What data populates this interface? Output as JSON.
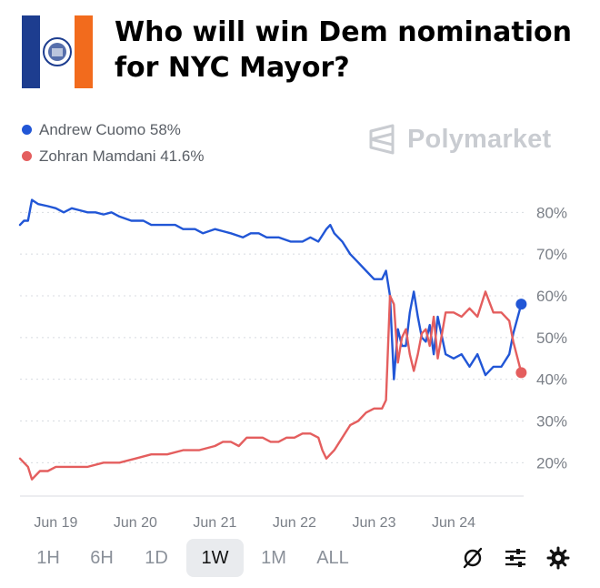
{
  "header": {
    "title": "Who will win Dem nomination for NYC Mayor?",
    "flag_colors": [
      "#1d3d8f",
      "#ffffff",
      "#f26b1d"
    ]
  },
  "brand": {
    "name": "Polymarket"
  },
  "legend": [
    {
      "label": "Andrew Cuomo 58%",
      "color": "#2156d6"
    },
    {
      "label": "Zohran Mamdani 41.6%",
      "color": "#e45e5e"
    }
  ],
  "chart_data": {
    "type": "line",
    "title": "Who will win Dem nomination for NYC Mayor?",
    "x_ticks": [
      "Jun 19",
      "Jun 20",
      "Jun 21",
      "Jun 22",
      "Jun 23",
      "Jun 24"
    ],
    "y_ticks": [
      "80%",
      "70%",
      "60%",
      "50%",
      "40%",
      "30%",
      "20%"
    ],
    "y_tick_values": [
      80,
      70,
      60,
      50,
      40,
      30,
      20
    ],
    "ylim": [
      12,
      84
    ],
    "xlim": [
      18.55,
      24.88
    ],
    "grid": true,
    "series": [
      {
        "name": "Andrew Cuomo",
        "color": "#2156d6",
        "end_value": 58,
        "points": [
          [
            18.55,
            77
          ],
          [
            18.6,
            78
          ],
          [
            18.65,
            78
          ],
          [
            18.7,
            83
          ],
          [
            18.78,
            82
          ],
          [
            18.9,
            81.5
          ],
          [
            19.0,
            81
          ],
          [
            19.1,
            80
          ],
          [
            19.2,
            81
          ],
          [
            19.3,
            80.5
          ],
          [
            19.4,
            80
          ],
          [
            19.5,
            80
          ],
          [
            19.6,
            79.5
          ],
          [
            19.7,
            80
          ],
          [
            19.8,
            79
          ],
          [
            19.95,
            78
          ],
          [
            20.1,
            78
          ],
          [
            20.2,
            77
          ],
          [
            20.3,
            77
          ],
          [
            20.5,
            77
          ],
          [
            20.6,
            76
          ],
          [
            20.75,
            76
          ],
          [
            20.85,
            75
          ],
          [
            21.0,
            76
          ],
          [
            21.1,
            75.5
          ],
          [
            21.2,
            75
          ],
          [
            21.35,
            74
          ],
          [
            21.45,
            75
          ],
          [
            21.55,
            75
          ],
          [
            21.65,
            74
          ],
          [
            21.8,
            74
          ],
          [
            21.95,
            73
          ],
          [
            22.1,
            73
          ],
          [
            22.2,
            74
          ],
          [
            22.3,
            73
          ],
          [
            22.4,
            76
          ],
          [
            22.45,
            77
          ],
          [
            22.5,
            75
          ],
          [
            22.6,
            73
          ],
          [
            22.7,
            70
          ],
          [
            22.8,
            68
          ],
          [
            22.9,
            66
          ],
          [
            23.0,
            64
          ],
          [
            23.1,
            64
          ],
          [
            23.15,
            66
          ],
          [
            23.2,
            60
          ],
          [
            23.25,
            40
          ],
          [
            23.3,
            52
          ],
          [
            23.35,
            48
          ],
          [
            23.4,
            48
          ],
          [
            23.45,
            56
          ],
          [
            23.5,
            61
          ],
          [
            23.55,
            55
          ],
          [
            23.6,
            50
          ],
          [
            23.65,
            49
          ],
          [
            23.7,
            53
          ],
          [
            23.75,
            46
          ],
          [
            23.8,
            55
          ],
          [
            23.9,
            46
          ],
          [
            24.0,
            45
          ],
          [
            24.1,
            46
          ],
          [
            24.2,
            43
          ],
          [
            24.3,
            46
          ],
          [
            24.4,
            41
          ],
          [
            24.5,
            43
          ],
          [
            24.6,
            43
          ],
          [
            24.7,
            46
          ],
          [
            24.75,
            51
          ],
          [
            24.85,
            58
          ]
        ]
      },
      {
        "name": "Zohran Mamdani",
        "color": "#e45e5e",
        "end_value": 41.6,
        "points": [
          [
            18.55,
            21
          ],
          [
            18.65,
            19
          ],
          [
            18.7,
            16
          ],
          [
            18.8,
            18
          ],
          [
            18.9,
            18
          ],
          [
            19.0,
            19
          ],
          [
            19.2,
            19
          ],
          [
            19.4,
            19
          ],
          [
            19.6,
            20
          ],
          [
            19.8,
            20
          ],
          [
            20.0,
            21
          ],
          [
            20.2,
            22
          ],
          [
            20.4,
            22
          ],
          [
            20.6,
            23
          ],
          [
            20.8,
            23
          ],
          [
            21.0,
            24
          ],
          [
            21.1,
            25
          ],
          [
            21.2,
            25
          ],
          [
            21.3,
            24
          ],
          [
            21.4,
            26
          ],
          [
            21.5,
            26
          ],
          [
            21.6,
            26
          ],
          [
            21.7,
            25
          ],
          [
            21.8,
            25
          ],
          [
            21.9,
            26
          ],
          [
            22.0,
            26
          ],
          [
            22.1,
            27
          ],
          [
            22.2,
            27
          ],
          [
            22.3,
            26
          ],
          [
            22.35,
            23
          ],
          [
            22.4,
            21
          ],
          [
            22.5,
            23
          ],
          [
            22.6,
            26
          ],
          [
            22.7,
            29
          ],
          [
            22.8,
            30
          ],
          [
            22.9,
            32
          ],
          [
            23.0,
            33
          ],
          [
            23.1,
            33
          ],
          [
            23.15,
            35
          ],
          [
            23.2,
            60
          ],
          [
            23.25,
            58
          ],
          [
            23.3,
            44
          ],
          [
            23.35,
            50
          ],
          [
            23.4,
            52
          ],
          [
            23.45,
            46
          ],
          [
            23.5,
            42
          ],
          [
            23.55,
            46
          ],
          [
            23.6,
            51
          ],
          [
            23.65,
            52
          ],
          [
            23.7,
            48
          ],
          [
            23.75,
            55
          ],
          [
            23.8,
            45
          ],
          [
            23.9,
            56
          ],
          [
            24.0,
            56
          ],
          [
            24.1,
            55
          ],
          [
            24.2,
            57
          ],
          [
            24.3,
            55
          ],
          [
            24.4,
            61
          ],
          [
            24.5,
            56
          ],
          [
            24.6,
            56
          ],
          [
            24.7,
            54
          ],
          [
            24.75,
            49
          ],
          [
            24.85,
            41.6
          ]
        ]
      }
    ]
  },
  "toolbar": {
    "ranges": [
      "1H",
      "6H",
      "1D",
      "1W",
      "1M",
      "ALL"
    ],
    "active": "1W",
    "icons": [
      "no-filter-icon",
      "sliders-icon",
      "gear-icon"
    ]
  }
}
